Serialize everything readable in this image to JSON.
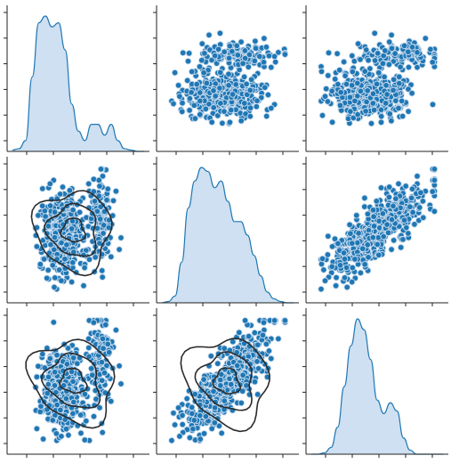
{
  "chart_data": {
    "type": "pairplot",
    "grid": {
      "rows": 3,
      "cols": 3
    },
    "variables": [
      "",
      "",
      ""
    ],
    "tick_labels_visible": false,
    "grid_lines": false,
    "colors": {
      "point_fill": "#1f77b4",
      "point_edge": "#c9dbee",
      "kde_fill": "#c6dbef",
      "kde_line": "#1f77b4",
      "contour": "#2b2b2b",
      "axes": "#222222"
    },
    "panels": [
      {
        "row": 0,
        "col": 0,
        "kind": "kde1d",
        "x": [
          0,
          5,
          10,
          15,
          20,
          25,
          30,
          35,
          40,
          45,
          50,
          55,
          60,
          65,
          70,
          75,
          80,
          85,
          90,
          95,
          100
        ],
        "density": [
          0.01,
          0.02,
          0.08,
          0.55,
          0.95,
          1.0,
          0.92,
          0.95,
          0.75,
          0.35,
          0.15,
          0.08,
          0.2,
          0.2,
          0.12,
          0.2,
          0.08,
          0.02,
          0.01,
          0.0,
          0.0
        ]
      },
      {
        "row": 0,
        "col": 1,
        "kind": "scatter",
        "x_var": 1,
        "y_var": 0,
        "correlation": 0.0
      },
      {
        "row": 0,
        "col": 2,
        "kind": "scatter",
        "x_var": 2,
        "y_var": 0,
        "correlation": -0.15
      },
      {
        "row": 1,
        "col": 0,
        "kind": "scatter+kde",
        "x_var": 0,
        "y_var": 1,
        "correlation": 0.0,
        "contour_levels": 3
      },
      {
        "row": 1,
        "col": 1,
        "kind": "kde1d",
        "x": [
          0,
          5,
          10,
          15,
          20,
          25,
          30,
          35,
          40,
          45,
          50,
          55,
          60,
          65,
          70,
          75,
          80,
          85,
          90,
          95,
          100
        ],
        "density": [
          0.0,
          0.01,
          0.05,
          0.3,
          0.7,
          0.9,
          1.0,
          0.97,
          0.85,
          0.9,
          0.75,
          0.6,
          0.6,
          0.5,
          0.35,
          0.2,
          0.08,
          0.03,
          0.01,
          0.0,
          0.0
        ]
      },
      {
        "row": 1,
        "col": 2,
        "kind": "scatter",
        "x_var": 2,
        "y_var": 1,
        "correlation": 0.65
      },
      {
        "row": 2,
        "col": 0,
        "kind": "scatter+kde",
        "x_var": 0,
        "y_var": 2,
        "correlation": -0.15,
        "contour_levels": 3
      },
      {
        "row": 2,
        "col": 1,
        "kind": "scatter+kde",
        "x_var": 1,
        "y_var": 2,
        "correlation": 0.65,
        "contour_levels": 3
      },
      {
        "row": 2,
        "col": 2,
        "kind": "kde1d",
        "x": [
          0,
          5,
          10,
          15,
          20,
          25,
          30,
          35,
          40,
          45,
          50,
          55,
          60,
          65,
          70,
          75,
          80,
          85,
          90,
          95,
          100
        ],
        "density": [
          0.0,
          0.0,
          0.01,
          0.05,
          0.2,
          0.5,
          0.8,
          1.0,
          0.92,
          0.7,
          0.4,
          0.3,
          0.38,
          0.32,
          0.12,
          0.03,
          0.0,
          0.0,
          0.0,
          0.0,
          0.0
        ]
      }
    ]
  }
}
